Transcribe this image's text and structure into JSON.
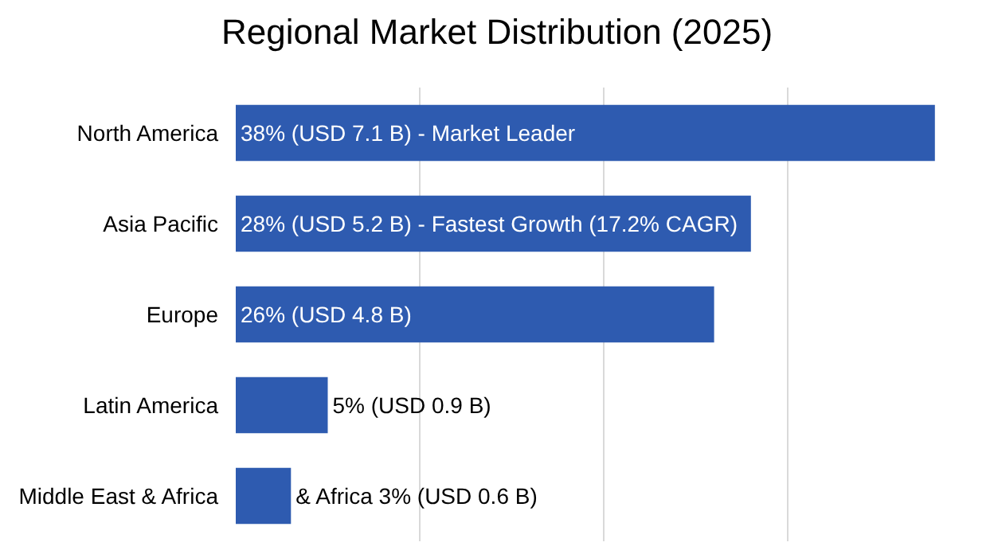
{
  "chart_data": {
    "type": "bar",
    "orientation": "horizontal",
    "title": "Regional Market Distribution (2025)",
    "categories": [
      "North America",
      "Asia Pacific",
      "Europe",
      "Latin America",
      "Middle East & Africa"
    ],
    "values": [
      38,
      28,
      26,
      5,
      3
    ],
    "color": "#2e5bb0",
    "value_labels": [
      "38% (USD 7.1 B) - Market Leader",
      "28% (USD 5.2 B) - Fastest Growth (17.2% CAGR)",
      "26% (USD 4.8 B)",
      "5% (USD 0.9 B)",
      "& Africa 3% (USD 0.6 B)"
    ],
    "xticks": [
      {
        "value": 10,
        "label": null
      },
      {
        "value": 20,
        "label": null
      },
      {
        "value": 30,
        "label": null
      }
    ],
    "grid": "x",
    "tick_labels": "y"
  }
}
